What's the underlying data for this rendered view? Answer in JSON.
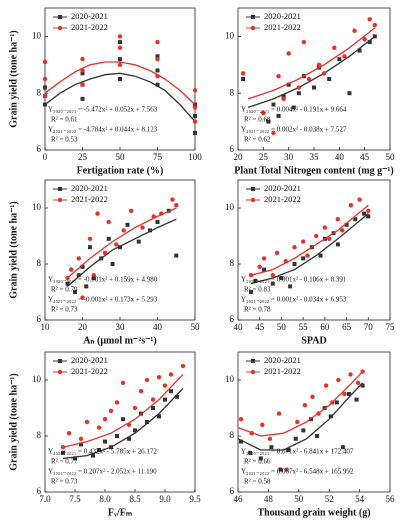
{
  "chart_data": [
    {
      "type": "scatter",
      "x_label": "Fertigation rate (%)",
      "y_label": "Grain yield (tone ha⁻¹)",
      "xlim": [
        0,
        100
      ],
      "xticks": [
        0,
        25,
        50,
        75,
        100
      ],
      "ylim": [
        6,
        11
      ],
      "yticks": [
        6,
        8,
        10
      ],
      "legend": "upper left",
      "series": [
        {
          "name": "2020-2021",
          "color": "#333333",
          "marker": "square",
          "x": [
            0,
            0,
            0,
            25,
            25,
            25,
            50,
            50,
            50,
            75,
            75,
            75,
            100,
            100,
            100
          ],
          "values": [
            7.6,
            7.9,
            8.2,
            7.8,
            8.3,
            8.7,
            8.5,
            9.2,
            9.8,
            8.3,
            8.8,
            9.3,
            6.6,
            7.2,
            7.6
          ],
          "fit": {
            "x": [
              0,
              10,
              20,
              30,
              40,
              50,
              60,
              70,
              80,
              90,
              100
            ],
            "values": [
              7.6,
              8.0,
              8.3,
              8.5,
              8.65,
              8.7,
              8.6,
              8.4,
              8.1,
              7.6,
              7.0
            ]
          }
        },
        {
          "name": "2021-2022",
          "color": "#e8302a",
          "marker": "circle",
          "x": [
            0,
            0,
            0,
            25,
            25,
            25,
            50,
            50,
            50,
            75,
            75,
            75,
            100,
            100,
            100
          ],
          "values": [
            7.9,
            8.5,
            9.1,
            8.3,
            8.8,
            9.2,
            9.0,
            9.6,
            10.0,
            8.6,
            9.2,
            9.8,
            7.0,
            7.5,
            8.1
          ],
          "fit": {
            "x": [
              0,
              10,
              20,
              30,
              40,
              50,
              60,
              70,
              80,
              90,
              100
            ],
            "values": [
              8.0,
              8.4,
              8.75,
              9.0,
              9.1,
              9.1,
              9.0,
              8.8,
              8.5,
              8.1,
              7.6
            ]
          }
        }
      ],
      "annotations": [
        "Y₂₀₂₀₋₂₀₂₁ = -5.472x² + 0.052x + 7.563",
        "R² = 0.61",
        "Y₂₀₂₁₋₂₀₂₂ = -4.784x² + 0.044x + 8.123",
        "R² = 0.53"
      ]
    },
    {
      "type": "scatter",
      "x_label": "Plant Total Nitrogen content (mg g⁻¹)",
      "xlim": [
        20,
        50
      ],
      "xticks": [
        20,
        25,
        30,
        35,
        40,
        45,
        50
      ],
      "ylim": [
        6,
        11
      ],
      "yticks": [
        6,
        8,
        10
      ],
      "legend": "upper left",
      "series": [
        {
          "name": "2020-2021",
          "color": "#333333",
          "marker": "square",
          "x": [
            21,
            26,
            27,
            28,
            29,
            30,
            31,
            32,
            33,
            35,
            36,
            38,
            40,
            42,
            44,
            46,
            47
          ],
          "values": [
            8.5,
            7.0,
            7.6,
            7.2,
            7.9,
            8.3,
            7.5,
            8.0,
            8.6,
            8.2,
            8.9,
            8.5,
            9.2,
            8.0,
            9.5,
            9.8,
            10.0
          ],
          "fit": {
            "x": [
              22,
              27,
              32,
              37,
              42,
              47
            ],
            "values": [
              7.5,
              7.8,
              8.2,
              8.7,
              9.3,
              10.0
            ]
          }
        },
        {
          "name": "2021-2022",
          "color": "#e8302a",
          "marker": "circle",
          "x": [
            21,
            25,
            27,
            28,
            29,
            30,
            32,
            33,
            34,
            36,
            37,
            39,
            41,
            43,
            45,
            46,
            47
          ],
          "values": [
            8.7,
            7.3,
            6.6,
            8.6,
            7.8,
            9.4,
            8.2,
            9.8,
            8.5,
            9.0,
            8.7,
            9.6,
            9.3,
            10.2,
            9.9,
            10.6,
            10.4
          ],
          "fit": {
            "x": [
              22,
              27,
              32,
              37,
              42,
              47
            ],
            "values": [
              7.8,
              8.1,
              8.5,
              9.0,
              9.6,
              10.3
            ]
          }
        }
      ],
      "annotations": [
        "Y₂₀₂₀₋₂₀₂₁ = 0.004x² - 0.191x + 9.664",
        "R² = 0.68",
        "Y₂₀₂₁₋₂₀₂₂ = 0.002x² - 0.038x + 7.527",
        "R² = 0.62"
      ]
    },
    {
      "type": "scatter",
      "x_label": "Aₙ (μmol m⁻²s⁻¹)",
      "y_label": "Grain yield (tone ha⁻¹)",
      "xlim": [
        10,
        50
      ],
      "xticks": [
        10,
        20,
        30,
        40,
        50
      ],
      "ylim": [
        6,
        11
      ],
      "yticks": [
        6,
        8,
        10
      ],
      "legend": "upper left",
      "series": [
        {
          "name": "2020-2021",
          "color": "#333333",
          "marker": "square",
          "x": [
            16,
            18,
            19,
            20,
            21,
            22,
            23,
            25,
            27,
            28,
            30,
            32,
            35,
            38,
            40,
            43,
            45
          ],
          "values": [
            7.3,
            7.0,
            7.6,
            7.9,
            7.2,
            8.6,
            7.5,
            8.2,
            8.9,
            8.0,
            8.6,
            9.4,
            8.8,
            9.2,
            9.5,
            9.9,
            8.3
          ],
          "fit": {
            "x": [
              16,
              22,
              28,
              34,
              40,
              45
            ],
            "values": [
              7.2,
              7.9,
              8.5,
              8.9,
              9.3,
              9.6
            ]
          }
        },
        {
          "name": "2021-2022",
          "color": "#e8302a",
          "marker": "circle",
          "x": [
            16,
            17,
            19,
            20,
            22,
            23,
            24,
            26,
            27,
            29,
            31,
            33,
            36,
            39,
            41,
            44,
            45
          ],
          "values": [
            7.5,
            7.8,
            8.2,
            6.8,
            8.9,
            7.6,
            9.8,
            8.4,
            9.5,
            8.7,
            9.2,
            9.9,
            9.3,
            9.7,
            9.8,
            10.3,
            10.1
          ],
          "fit": {
            "x": [
              16,
              22,
              28,
              34,
              40,
              45
            ],
            "values": [
              7.5,
              8.2,
              8.8,
              9.3,
              9.7,
              10.0
            ]
          }
        }
      ],
      "annotations": [
        "Y₂₀₂₀₋₂₀₂₁ = -0.001x² + 0.159x + 4.980",
        "R² = 0.79",
        "Y₂₀₂₁₋₂₀₂₂ = -0.001x² + 0.173x + 5.293",
        "R² = 0.73"
      ]
    },
    {
      "type": "scatter",
      "x_label": "SPAD",
      "xlim": [
        40,
        75
      ],
      "xticks": [
        40,
        45,
        50,
        55,
        60,
        65,
        70,
        75
      ],
      "ylim": [
        6,
        11
      ],
      "yticks": [
        6,
        8,
        10
      ],
      "legend": "upper left",
      "series": [
        {
          "name": "2020-2021",
          "color": "#333333",
          "marker": "square",
          "x": [
            43,
            44,
            46,
            48,
            50,
            52,
            53,
            55,
            57,
            59,
            60,
            62,
            63,
            65,
            67,
            69,
            70
          ],
          "values": [
            7.0,
            7.4,
            7.8,
            7.3,
            7.5,
            7.2,
            8.0,
            8.2,
            8.6,
            8.3,
            8.9,
            9.1,
            8.7,
            9.4,
            9.6,
            9.8,
            9.7
          ],
          "fit": {
            "x": [
              43,
              48,
              53,
              58,
              63,
              70
            ],
            "values": [
              7.3,
              7.5,
              7.8,
              8.3,
              8.9,
              9.8
            ]
          }
        },
        {
          "name": "2021-2022",
          "color": "#e8302a",
          "marker": "circle",
          "x": [
            43,
            45,
            46,
            48,
            49,
            51,
            53,
            55,
            56,
            58,
            60,
            61,
            63,
            64,
            66,
            68,
            70
          ],
          "values": [
            7.6,
            7.9,
            8.2,
            7.6,
            8.4,
            8.1,
            8.6,
            8.8,
            8.3,
            9.0,
            9.3,
            8.9,
            9.6,
            9.2,
            10.1,
            10.3,
            9.9
          ],
          "fit": {
            "x": [
              43,
              48,
              53,
              58,
              63,
              70
            ],
            "values": [
              7.6,
              7.8,
              8.2,
              8.7,
              9.2,
              10.1
            ]
          }
        }
      ],
      "annotations": [
        "Y₂₀₂₀₋₂₀₂₁ = 0.001x² - 0.106x + 8.391",
        "R² = 0.83",
        "Y₂₀₂₁₋₂₀₂₂ = 0.001x² - 0.034x + 6.953",
        "R² = 0.78"
      ]
    },
    {
      "type": "scatter",
      "x_label": "Fᵥ/Fₘ",
      "y_label": "Grain yield (tone ha⁻¹)",
      "xlim": [
        7,
        9.5
      ],
      "xticks": [
        {
          "value": 7,
          "label": "7.0"
        },
        7.5,
        {
          "value": 8,
          "label": "8.0"
        },
        8.5,
        {
          "value": 9,
          "label": "9.0"
        },
        9.5
      ],
      "ylim": [
        6,
        11
      ],
      "yticks": [
        6,
        8,
        10
      ],
      "legend": "upper left",
      "series": [
        {
          "name": "2020-2021",
          "color": "#333333",
          "marker": "square",
          "x": [
            7.3,
            7.5,
            7.6,
            7.8,
            7.9,
            8.0,
            8.1,
            8.2,
            8.3,
            8.4,
            8.5,
            8.6,
            8.7,
            8.8,
            8.9,
            9.0,
            9.1,
            9.2
          ],
          "values": [
            7.4,
            7.2,
            7.7,
            7.3,
            7.5,
            7.8,
            7.6,
            8.0,
            8.6,
            7.9,
            8.2,
            8.8,
            8.5,
            9.0,
            8.7,
            9.3,
            9.6,
            9.4
          ],
          "fit": {
            "x": [
              7.3,
              7.7,
              8.1,
              8.5,
              8.9,
              9.3
            ],
            "values": [
              7.2,
              7.3,
              7.6,
              8.1,
              8.8,
              9.7
            ]
          }
        },
        {
          "name": "2021-2022",
          "color": "#e8302a",
          "marker": "circle",
          "x": [
            7.3,
            7.4,
            7.6,
            7.7,
            7.9,
            8.0,
            8.1,
            8.2,
            8.3,
            8.4,
            8.5,
            8.6,
            8.7,
            8.8,
            8.9,
            9.0,
            9.1,
            9.3
          ],
          "values": [
            7.6,
            8.1,
            7.9,
            8.5,
            8.3,
            8.6,
            8.9,
            9.2,
            9.9,
            8.4,
            9.0,
            9.6,
            10.0,
            9.3,
            10.1,
            9.8,
            10.2,
            10.5
          ],
          "fit": {
            "x": [
              7.3,
              7.7,
              8.1,
              8.5,
              8.9,
              9.3
            ],
            "values": [
              7.6,
              7.8,
              8.1,
              8.6,
              9.3,
              10.2
            ]
          }
        }
      ],
      "annotations": [
        "Y₂₀₂₀₋₂₀₂₁ = 0.432x² - 5.785x + 26.172",
        "R² = 0.77",
        "Y₂₀₂₁₋₂₀₂₂ = 0.207x² - 2.052x + 11.190",
        "R² = 0.73"
      ]
    },
    {
      "type": "scatter",
      "x_label": "Thousand grain weight (g)",
      "xlim": [
        46,
        56
      ],
      "xticks": [
        46,
        48,
        50,
        52,
        54,
        56
      ],
      "ylim": [
        6,
        11
      ],
      "yticks": [
        6,
        8,
        10
      ],
      "legend": "upper left",
      "series": [
        {
          "name": "2020-2021",
          "color": "#333333",
          "marker": "square",
          "x": [
            46.2,
            46.8,
            47.5,
            48.2,
            48.8,
            49.3,
            49.8,
            50.3,
            50.8,
            51.2,
            51.7,
            52.1,
            52.5,
            52.9,
            53.3,
            53.8,
            54.2
          ],
          "values": [
            7.8,
            7.4,
            7.2,
            7.6,
            6.8,
            7.5,
            7.9,
            8.2,
            8.6,
            8.0,
            9.0,
            8.7,
            9.2,
            7.6,
            9.5,
            9.3,
            9.8
          ],
          "fit": {
            "x": [
              46,
              47.5,
              49,
              50.5,
              52,
              53.5,
              54.2
            ],
            "values": [
              7.9,
              7.5,
              7.5,
              7.9,
              8.6,
              9.5,
              9.9
            ]
          }
        },
        {
          "name": "2021-2022",
          "color": "#e8302a",
          "marker": "circle",
          "x": [
            46.2,
            46.9,
            47.6,
            48.1,
            48.7,
            49.2,
            49.9,
            50.4,
            50.9,
            51.3,
            51.8,
            52.2,
            52.6,
            53.0,
            53.4,
            53.9,
            54.2
          ],
          "values": [
            8.6,
            8.1,
            8.4,
            7.9,
            8.8,
            6.8,
            8.5,
            9.1,
            9.4,
            8.8,
            9.8,
            9.2,
            10.0,
            9.5,
            10.2,
            9.9,
            10.3
          ],
          "fit": {
            "x": [
              46,
              47.5,
              49,
              50.5,
              52,
              53.5,
              54.2
            ],
            "values": [
              8.3,
              8.0,
              8.1,
              8.5,
              9.1,
              9.9,
              10.3
            ]
          }
        }
      ],
      "annotations": [
        "Y₂₀₂₀₋₂₀₂₁ = 0.071x² - 6.841x + 172.407",
        "R² = 0.66",
        "Y₂₀₂₁₋₂₀₂₂ = 0.067x² - 6.548x + 165.992",
        "R² = 0.58"
      ]
    }
  ]
}
